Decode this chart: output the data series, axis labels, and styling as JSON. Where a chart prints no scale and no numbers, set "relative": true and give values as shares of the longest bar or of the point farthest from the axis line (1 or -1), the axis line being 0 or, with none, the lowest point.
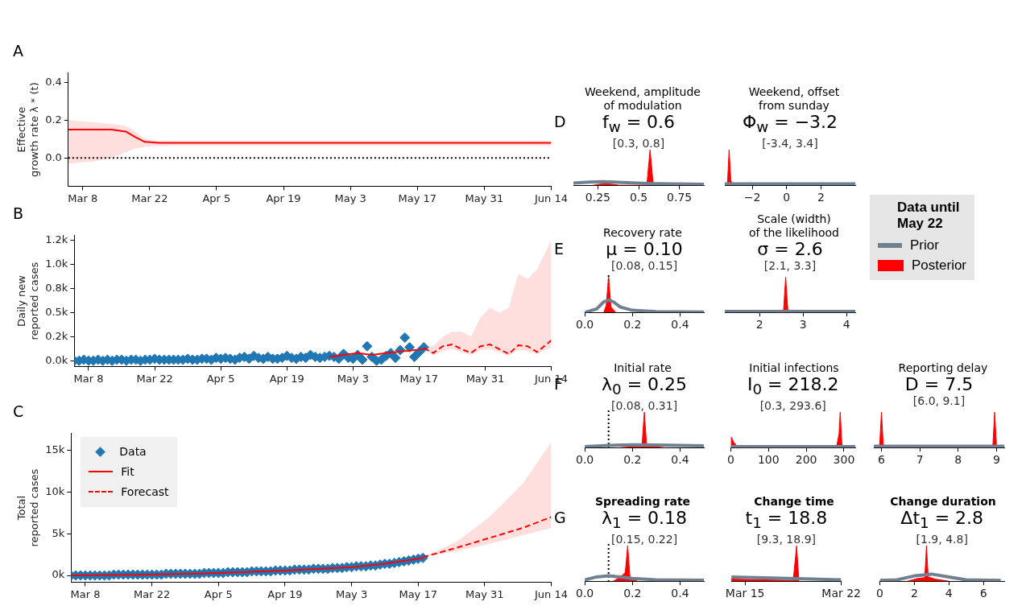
{
  "chart_data": [
    {
      "type": "line",
      "ylabel": "Effective\ngrowth rate λ * (t)",
      "annotations": [
        "A"
      ],
      "xlim": [
        "--03-05",
        "--06-14"
      ],
      "xticks": [
        {
          "value": "--03-08",
          "label": "Mar 8"
        },
        {
          "value": "--03-22",
          "label": "Mar 22"
        },
        {
          "value": "--04-05",
          "label": "Apr 5"
        },
        {
          "value": "--04-19",
          "label": "Apr 19"
        },
        {
          "value": "--05-03",
          "label": "May 3"
        },
        {
          "value": "--05-17",
          "label": "May 17"
        },
        {
          "value": "--05-31",
          "label": "May 31"
        },
        {
          "value": "--06-14",
          "label": "Jun 14"
        }
      ],
      "ylim": [
        -0.15,
        0.45
      ],
      "yticks": [
        {
          "value": 0,
          "label": "0.0"
        },
        {
          "value": 0.2,
          "label": "0.2"
        },
        {
          "value": 0.4,
          "label": "0.4"
        }
      ],
      "ref_lines": [
        {
          "axis": "y",
          "value": 0,
          "color": "#000000",
          "line_style": "dotted"
        }
      ],
      "series": [
        {
          "color": "#ff0000",
          "x": [
            "--03-05",
            "--03-10",
            "--03-14",
            "--03-17",
            "--03-19",
            "--03-21",
            "--03-24",
            "--06-14"
          ],
          "values": [
            0.15,
            0.15,
            0.15,
            0.14,
            0.11,
            0.085,
            0.08,
            0.08
          ],
          "lower": [
            -0.03,
            -0.02,
            0,
            0.03,
            0.05,
            0.06,
            0.065,
            0.065
          ],
          "upper": [
            0.2,
            0.19,
            0.18,
            0.17,
            0.14,
            0.1,
            0.09,
            0.09
          ]
        }
      ]
    },
    {
      "type": "line",
      "ylabel": "Daily new\nreported cases",
      "annotations": [
        "B"
      ],
      "xlim": [
        "--03-05",
        "--06-14"
      ],
      "xticks": [
        {
          "value": "--03-08",
          "label": "Mar 8"
        },
        {
          "value": "--03-22",
          "label": "Mar 22"
        },
        {
          "value": "--04-05",
          "label": "Apr 5"
        },
        {
          "value": "--04-19",
          "label": "Apr 19"
        },
        {
          "value": "--05-03",
          "label": "May 3"
        },
        {
          "value": "--05-17",
          "label": "May 17"
        },
        {
          "value": "--05-31",
          "label": "May 31"
        },
        {
          "value": "--06-14",
          "label": "Jun 14"
        }
      ],
      "ylim": [
        -60,
        1300
      ],
      "yticks": [
        {
          "value": 0,
          "label": "0.0k"
        },
        {
          "value": 250,
          "label": "0.2k"
        },
        {
          "value": 500,
          "label": "0.5k"
        },
        {
          "value": 750,
          "label": "0.8k"
        },
        {
          "value": 1000,
          "label": "1.0k"
        },
        {
          "value": 1250,
          "label": "1.2k"
        }
      ],
      "x": [
        "--03-05",
        "--03-06",
        "--03-07",
        "--03-08",
        "--03-09",
        "--03-10",
        "--03-11",
        "--03-12",
        "--03-13",
        "--03-14",
        "--03-15",
        "--03-16",
        "--03-17",
        "--03-18",
        "--03-19",
        "--03-20",
        "--03-21",
        "--03-22",
        "--03-23",
        "--03-24",
        "--03-25",
        "--03-26",
        "--03-27",
        "--03-28",
        "--03-29",
        "--03-30",
        "--03-31",
        "--04-01",
        "--04-02",
        "--04-03",
        "--04-04",
        "--04-05",
        "--04-06",
        "--04-07",
        "--04-08",
        "--04-09",
        "--04-10",
        "--04-11",
        "--04-12",
        "--04-13",
        "--04-14",
        "--04-15",
        "--04-16",
        "--04-17",
        "--04-18",
        "--04-19",
        "--04-20",
        "--04-21",
        "--04-22",
        "--04-23",
        "--04-24",
        "--04-25",
        "--04-26",
        "--04-27",
        "--04-28",
        "--04-29",
        "--04-30",
        "--05-01",
        "--05-02",
        "--05-03",
        "--05-04",
        "--05-05",
        "--05-06",
        "--05-07",
        "--05-08",
        "--05-09",
        "--05-10",
        "--05-11",
        "--05-12",
        "--05-13",
        "--05-14",
        "--05-15",
        "--05-16",
        "--05-17",
        "--05-18"
      ],
      "series": [
        {
          "type": "scatter",
          "marker": "diamond",
          "color": "#1f77b4",
          "values": [
            0,
            0,
            10,
            0,
            0,
            10,
            0,
            10,
            0,
            10,
            10,
            0,
            10,
            10,
            0,
            10,
            10,
            20,
            10,
            10,
            10,
            10,
            10,
            10,
            20,
            10,
            10,
            20,
            20,
            10,
            30,
            20,
            30,
            20,
            10,
            30,
            40,
            20,
            50,
            30,
            20,
            40,
            20,
            20,
            30,
            50,
            30,
            20,
            40,
            30,
            60,
            40,
            30,
            40,
            50,
            40,
            20,
            70,
            30,
            20,
            60,
            10,
            150,
            40,
            0,
            10,
            50,
            80,
            30,
            110,
            240,
            140,
            40,
            90,
            140
          ]
        },
        {
          "type": "line",
          "color": "#ff0000",
          "x": [
            "--04-28",
            "--05-01",
            "--05-04",
            "--05-07",
            "--05-10",
            "--05-14",
            "--05-18"
          ],
          "values": [
            40,
            60,
            80,
            60,
            80,
            100,
            120
          ]
        },
        {
          "type": "line",
          "color": "#ff0000",
          "line_style": "dashed",
          "x": [
            "--05-18",
            "--05-20",
            "--05-22",
            "--05-24",
            "--05-26",
            "--05-28",
            "--05-30",
            "--06-01",
            "--06-03",
            "--06-05",
            "--06-07",
            "--06-09",
            "--06-11",
            "--06-14"
          ],
          "values": [
            130,
            80,
            150,
            170,
            120,
            80,
            150,
            170,
            120,
            70,
            160,
            150,
            90,
            210
          ],
          "lower": [
            120,
            60,
            100,
            120,
            90,
            60,
            110,
            120,
            90,
            50,
            110,
            100,
            70,
            140
          ],
          "upper": [
            150,
            150,
            250,
            300,
            300,
            250,
            450,
            550,
            500,
            550,
            900,
            850,
            950,
            1250
          ]
        }
      ]
    },
    {
      "type": "line",
      "ylabel": "Total\nreported cases",
      "annotations": [
        "C"
      ],
      "legend": "top left",
      "xlim": [
        "--03-05",
        "--06-14"
      ],
      "xticks": [
        {
          "value": "--03-08",
          "label": "Mar 8"
        },
        {
          "value": "--03-22",
          "label": "Mar 22"
        },
        {
          "value": "--04-05",
          "label": "Apr 5"
        },
        {
          "value": "--04-19",
          "label": "Apr 19"
        },
        {
          "value": "--05-03",
          "label": "May 3"
        },
        {
          "value": "--05-17",
          "label": "May 17"
        },
        {
          "value": "--05-31",
          "label": "May 31"
        },
        {
          "value": "--06-14",
          "label": "Jun 14"
        }
      ],
      "ylim": [
        -800,
        17000
      ],
      "yticks": [
        {
          "value": 0,
          "label": "0k"
        },
        {
          "value": 5000,
          "label": "5k"
        },
        {
          "value": 10000,
          "label": "10k"
        },
        {
          "value": 15000,
          "label": "15k"
        }
      ],
      "x": [
        "--03-05",
        "--03-06",
        "--03-07",
        "--03-08",
        "--03-09",
        "--03-10",
        "--03-11",
        "--03-12",
        "--03-13",
        "--03-14",
        "--03-15",
        "--03-16",
        "--03-17",
        "--03-18",
        "--03-19",
        "--03-20",
        "--03-21",
        "--03-22",
        "--03-23",
        "--03-24",
        "--03-25",
        "--03-26",
        "--03-27",
        "--03-28",
        "--03-29",
        "--03-30",
        "--03-31",
        "--04-01",
        "--04-02",
        "--04-03",
        "--04-04",
        "--04-05",
        "--04-06",
        "--04-07",
        "--04-08",
        "--04-09",
        "--04-10",
        "--04-11",
        "--04-12",
        "--04-13",
        "--04-14",
        "--04-15",
        "--04-16",
        "--04-17",
        "--04-18",
        "--04-19",
        "--04-20",
        "--04-21",
        "--04-22",
        "--04-23",
        "--04-24",
        "--04-25",
        "--04-26",
        "--04-27",
        "--04-28",
        "--04-29",
        "--04-30",
        "--05-01",
        "--05-02",
        "--05-03",
        "--05-04",
        "--05-05",
        "--05-06",
        "--05-07",
        "--05-08",
        "--05-09",
        "--05-10",
        "--05-11",
        "--05-12",
        "--05-13",
        "--05-14",
        "--05-15",
        "--05-16",
        "--05-17",
        "--05-18"
      ],
      "series": [
        {
          "type": "scatter",
          "marker": "diamond",
          "name": "Data",
          "color": "#1f77b4",
          "values": [
            0,
            0,
            0,
            0,
            0,
            0,
            0,
            0,
            0,
            100,
            100,
            100,
            100,
            100,
            100,
            100,
            100,
            100,
            100,
            100,
            200,
            200,
            200,
            200,
            200,
            200,
            200,
            200,
            300,
            300,
            300,
            300,
            300,
            400,
            400,
            400,
            400,
            400,
            500,
            500,
            500,
            500,
            500,
            600,
            600,
            600,
            600,
            700,
            700,
            700,
            700,
            800,
            800,
            800,
            800,
            900,
            900,
            900,
            1000,
            1000,
            1100,
            1100,
            1100,
            1200,
            1200,
            1300,
            1400,
            1400,
            1500,
            1600,
            1700,
            1800,
            1900,
            2000,
            2100
          ]
        },
        {
          "type": "line",
          "name": "Fit",
          "color": "#ff0000",
          "x": [
            "--03-05",
            "--03-22",
            "--04-05",
            "--04-19",
            "--05-03",
            "--05-10",
            "--05-18"
          ],
          "values": [
            0,
            100,
            300,
            600,
            1000,
            1400,
            2100
          ]
        },
        {
          "type": "line",
          "name": "Forecast",
          "color": "#ff0000",
          "line_style": "dashed",
          "x": [
            "--05-18",
            "--05-25",
            "--06-01",
            "--06-08",
            "--06-14"
          ],
          "values": [
            2200,
            3300,
            4500,
            5700,
            7000
          ],
          "lower": [
            2200,
            2900,
            3800,
            4800,
            5700
          ],
          "upper": [
            2200,
            4000,
            7000,
            11000,
            16000
          ]
        }
      ]
    },
    {
      "type": "line",
      "relative": true,
      "title": "Weekend, amplitude\nof modulation",
      "annotations": [
        "D",
        "f$_{w}$ = 0.6",
        "[0.3, 0.8]"
      ],
      "xlim": [
        0.1,
        0.9
      ],
      "xticks": [
        0.25,
        0.5,
        0.75
      ],
      "series": [
        {
          "color": "#708090",
          "x": [
            0.1,
            0.2,
            0.28,
            0.4,
            0.55,
            0.7,
            0.9
          ],
          "values": [
            0.06,
            0.09,
            0.1,
            0.08,
            0.05,
            0.04,
            0.03
          ]
        },
        {
          "type": "area",
          "color": "#ff0000",
          "x": [
            0.22,
            0.26,
            0.3,
            0.34,
            0.38,
            0.55,
            0.57,
            0.59
          ],
          "values": [
            0,
            0.03,
            0.04,
            0.03,
            0,
            0,
            1,
            0
          ]
        }
      ]
    },
    {
      "type": "line",
      "relative": true,
      "title": "Weekend, offset\nfrom sunday",
      "annotations": [
        "Φ$_{w}$ = −3.2",
        "[-3.4, 3.4]"
      ],
      "xlim": [
        -3.6,
        4
      ],
      "xticks": [
        {
          "value": -2,
          "label": "−2"
        },
        0,
        2
      ],
      "series": [
        {
          "color": "#708090",
          "x": [
            -3.6,
            -2,
            0,
            2,
            4
          ],
          "values": [
            0.04,
            0.04,
            0.04,
            0.04,
            0.04
          ]
        },
        {
          "type": "area",
          "color": "#ff0000",
          "x": [
            -3.45,
            -3.35,
            -3.25,
            -3.15
          ],
          "values": [
            0,
            1,
            0.15,
            0
          ]
        }
      ]
    },
    {
      "type": "line",
      "relative": true,
      "title": "Recovery rate",
      "annotations": [
        "E",
        "μ = 0.10",
        "[0.08, 0.15]"
      ],
      "xlim": [
        0,
        0.5
      ],
      "xticks": [
        {
          "value": 0,
          "label": "0.0"
        },
        {
          "value": 0.2,
          "label": "0.2"
        },
        {
          "value": 0.4,
          "label": "0.4"
        }
      ],
      "ref_lines": [
        {
          "axis": "x",
          "value": 0.1,
          "color": "#000000",
          "line_style": "dotted"
        }
      ],
      "series": [
        {
          "color": "#708090",
          "x": [
            0,
            0.05,
            0.08,
            0.1,
            0.12,
            0.15,
            0.2,
            0.3,
            0.5
          ],
          "values": [
            0,
            0.1,
            0.3,
            0.35,
            0.3,
            0.15,
            0.06,
            0.02,
            0.01
          ]
        },
        {
          "type": "area",
          "color": "#ff0000",
          "x": [
            0.08,
            0.09,
            0.1,
            0.11,
            0.13
          ],
          "values": [
            0,
            0.2,
            1,
            0.15,
            0
          ]
        }
      ]
    },
    {
      "type": "line",
      "relative": true,
      "title": "Scale (width)\nof the likelihood",
      "annotations": [
        "σ = 2.6",
        "[2.1, 3.3]"
      ],
      "legend": "right",
      "legend_title": "Data until\nMay 22",
      "xlim": [
        1.2,
        4.2
      ],
      "xticks": [
        2,
        3,
        4
      ],
      "series": [
        {
          "name": "Prior",
          "color": "#708090",
          "x": [
            1.2,
            2,
            3,
            4,
            4.2
          ],
          "values": [
            0.03,
            0.03,
            0.03,
            0.03,
            0.03
          ]
        },
        {
          "name": "Posterior",
          "type": "area",
          "color": "#ff0000",
          "x": [
            2.4,
            2.55,
            2.6,
            2.65,
            2.8
          ],
          "values": [
            0,
            0.05,
            1,
            0.05,
            0
          ]
        }
      ]
    },
    {
      "type": "line",
      "relative": true,
      "title": "Initial rate",
      "annotations": [
        "F",
        "λ$_{0}$ = 0.25",
        "[0.08, 0.31]"
      ],
      "xlim": [
        0,
        0.5
      ],
      "xticks": [
        {
          "value": 0,
          "label": "0.0"
        },
        {
          "value": 0.2,
          "label": "0.2"
        },
        {
          "value": 0.4,
          "label": "0.4"
        }
      ],
      "ref_lines": [
        {
          "axis": "x",
          "value": 0.1,
          "color": "#000000",
          "line_style": "dotted"
        }
      ],
      "series": [
        {
          "color": "#708090",
          "x": [
            0,
            0.1,
            0.2,
            0.3,
            0.4,
            0.5
          ],
          "values": [
            0.03,
            0.06,
            0.08,
            0.07,
            0.06,
            0.05
          ]
        },
        {
          "type": "area",
          "color": "#ff0000",
          "x": [
            0.15,
            0.2,
            0.24,
            0.25,
            0.26,
            0.3,
            0.33
          ],
          "values": [
            0,
            0.02,
            0.03,
            1,
            0.03,
            0.02,
            0
          ]
        }
      ]
    },
    {
      "type": "line",
      "relative": true,
      "title": "Initial infections",
      "annotations": [
        "I$_{0}$ = 218.2",
        "[0.3, 293.6]"
      ],
      "xlim": [
        0,
        330
      ],
      "xticks": [
        0,
        100,
        200,
        300
      ],
      "series": [
        {
          "color": "#708090",
          "x": [
            0,
            330
          ],
          "values": [
            0.03,
            0.03
          ]
        },
        {
          "type": "area",
          "color": "#ff0000",
          "x": [
            0,
            1,
            8,
            15,
            25,
            280,
            287,
            290,
            295
          ],
          "values": [
            0,
            0.3,
            0.15,
            0.05,
            0,
            0,
            0.4,
            1,
            0
          ]
        }
      ]
    },
    {
      "type": "line",
      "relative": true,
      "title": "Reporting delay",
      "annotations": [
        "D = 7.5",
        "[6.0, 9.1]"
      ],
      "xlim": [
        5.8,
        9.2
      ],
      "xticks": [
        6,
        7,
        8,
        9
      ],
      "series": [
        {
          "color": "#708090",
          "x": [
            5.8,
            9.2
          ],
          "values": [
            0.04,
            0.04
          ]
        },
        {
          "type": "area",
          "color": "#ff0000",
          "x": [
            5.95,
            6,
            6.05,
            8.9,
            8.95,
            9
          ],
          "values": [
            0,
            1,
            0,
            0,
            1,
            0
          ]
        }
      ]
    },
    {
      "type": "line",
      "relative": true,
      "title": "Spreading rate",
      "annotations": [
        "G",
        "λ$_{1}$ = 0.18",
        "[0.15, 0.22]"
      ],
      "xlim": [
        0,
        0.5
      ],
      "xticks": [
        {
          "value": 0,
          "label": "0.0"
        },
        {
          "value": 0.2,
          "label": "0.2"
        },
        {
          "value": 0.4,
          "label": "0.4"
        }
      ],
      "ref_lines": [
        {
          "axis": "x",
          "value": 0.1,
          "color": "#000000",
          "line_style": "dotted"
        }
      ],
      "series": [
        {
          "color": "#708090",
          "x": [
            0,
            0.05,
            0.1,
            0.15,
            0.2,
            0.3,
            0.5
          ],
          "values": [
            0.04,
            0.12,
            0.15,
            0.12,
            0.08,
            0.04,
            0.03
          ]
        },
        {
          "type": "area",
          "color": "#ff0000",
          "x": [
            0.12,
            0.15,
            0.17,
            0.18,
            0.19,
            0.22
          ],
          "values": [
            0,
            0.12,
            0.25,
            1,
            0.1,
            0
          ]
        }
      ]
    },
    {
      "type": "line",
      "relative": true,
      "title": "Change time",
      "annotations": [
        "t$_{1}$ = 18.8",
        "[9.3, 18.9]"
      ],
      "xlim": [
        "--03-14",
        "--03-22"
      ],
      "xticks": [
        {
          "value": "--03-15",
          "label": "Mar 15"
        },
        {
          "value": "--03-22",
          "label": "Mar 22"
        }
      ],
      "series": [
        {
          "color": "#708090",
          "x": [
            "--03-14",
            "--03-22"
          ],
          "values": [
            0.12,
            0.04
          ]
        },
        {
          "type": "area",
          "color": "#ff0000",
          "x": [
            "--03-14",
            "--03-18T12:00",
            "--03-18T18:00",
            "--03-18T22:00"
          ],
          "values": [
            0.06,
            0.02,
            1,
            0
          ]
        }
      ]
    },
    {
      "type": "line",
      "relative": true,
      "title": "Change duration",
      "annotations": [
        "Δt$_{1}$ = 2.8",
        "[1.9, 4.8]"
      ],
      "xlim": [
        0,
        7.2
      ],
      "xticks": [
        0,
        2,
        4,
        6
      ],
      "series": [
        {
          "color": "#708090",
          "x": [
            0,
            1,
            2,
            3,
            4,
            5,
            7
          ],
          "values": [
            0.02,
            0.04,
            0.15,
            0.2,
            0.12,
            0.04,
            0.02
          ]
        },
        {
          "type": "area",
          "color": "#ff0000",
          "x": [
            1.6,
            2.2,
            2.6,
            2.7,
            2.8,
            3.2,
            4
          ],
          "values": [
            0,
            0.08,
            0.1,
            1,
            0.12,
            0.06,
            0
          ]
        }
      ]
    }
  ]
}
